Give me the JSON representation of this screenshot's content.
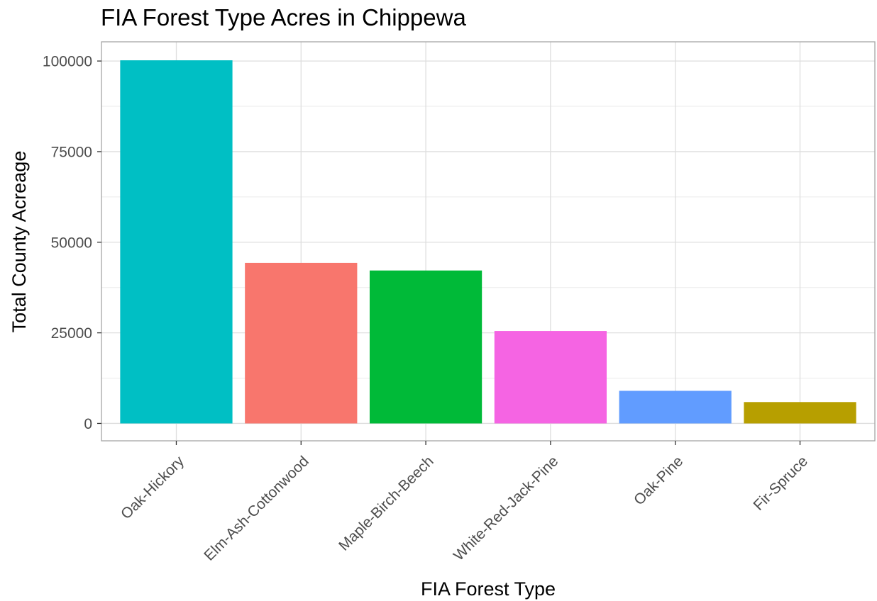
{
  "chart_data": {
    "type": "bar",
    "title": "FIA Forest Type Acres in Chippewa",
    "xlabel": "FIA Forest Type",
    "ylabel": "Total County Acreage",
    "categories": [
      "Oak-Hickory",
      "Elm-Ash-Cottonwood",
      "Maple-Birch-Beech",
      "White-Red-Jack-Pine",
      "Oak-Pine",
      "Fir-Spruce"
    ],
    "values": [
      100200,
      44300,
      42200,
      25500,
      9000,
      5900
    ],
    "colors": [
      "#00BFC4",
      "#F8766D",
      "#00BA38",
      "#F564E3",
      "#619CFF",
      "#B79F00"
    ],
    "yticks": [
      0,
      25000,
      50000,
      75000,
      100000
    ],
    "ytick_labels": [
      "0",
      "25000",
      "50000",
      "75000",
      "100000"
    ],
    "ylim": [
      -4800,
      105300
    ],
    "grid": true,
    "legend": "none"
  }
}
